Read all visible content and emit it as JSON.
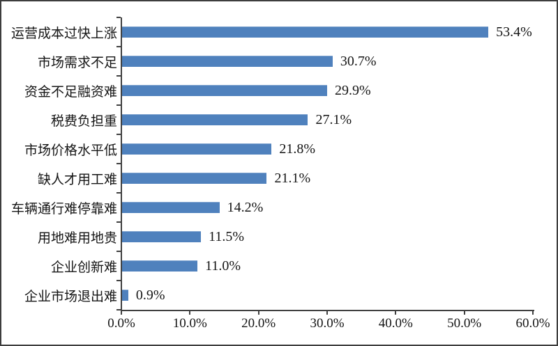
{
  "chart_data": {
    "type": "bar",
    "orientation": "horizontal",
    "title": "",
    "categories": [
      "运营成本过快上涨",
      "市场需求不足",
      "资金不足融资难",
      "税费负担重",
      "市场价格水平低",
      "缺人才用工难",
      "车辆通行难停靠难",
      "用地难用地贵",
      "企业创新难",
      "企业市场退出难"
    ],
    "values": [
      53.4,
      30.7,
      29.9,
      27.1,
      21.8,
      21.1,
      14.2,
      11.5,
      11.0,
      0.9
    ],
    "value_labels": [
      "53.4%",
      "30.7%",
      "29.9%",
      "27.1%",
      "21.8%",
      "21.1%",
      "14.2%",
      "11.5%",
      "11.0%",
      "0.9%"
    ],
    "x_tick_labels": [
      "0.0%",
      "10.0%",
      "20.0%",
      "30.0%",
      "40.0%",
      "50.0%",
      "60.0%"
    ],
    "x_tick_values": [
      0,
      10,
      20,
      30,
      40,
      50,
      60
    ],
    "xlim": [
      0,
      60
    ],
    "grid": false,
    "legend": false,
    "colors": {
      "bar": "#4F81BD",
      "axis": "#404040",
      "frame": "#3d3d3d",
      "text": "#151515",
      "background": "#ffffff"
    }
  }
}
